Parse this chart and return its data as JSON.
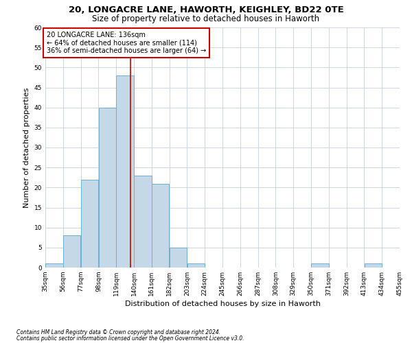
{
  "title_line1": "20, LONGACRE LANE, HAWORTH, KEIGHLEY, BD22 0TE",
  "title_line2": "Size of property relative to detached houses in Haworth",
  "xlabel": "Distribution of detached houses by size in Haworth",
  "ylabel": "Number of detached properties",
  "footnote1": "Contains HM Land Registry data © Crown copyright and database right 2024.",
  "footnote2": "Contains public sector information licensed under the Open Government Licence v3.0.",
  "annotation_title": "20 LONGACRE LANE: 136sqm",
  "annotation_line2": "← 64% of detached houses are smaller (114)",
  "annotation_line3": "36% of semi-detached houses are larger (64) →",
  "property_size": 136,
  "bar_edges": [
    35,
    56,
    77,
    98,
    119,
    140,
    161,
    182,
    203,
    224,
    245,
    266,
    287,
    308,
    329,
    350,
    371,
    392,
    413,
    434,
    455
  ],
  "bar_values": [
    1,
    8,
    22,
    40,
    48,
    23,
    21,
    5,
    1,
    0,
    0,
    0,
    0,
    0,
    0,
    1,
    0,
    0,
    1,
    0,
    0
  ],
  "bar_color": "#c5d8e8",
  "bar_edge_color": "#6aafd4",
  "vline_color": "#cc0000",
  "vline_x": 136,
  "annotation_box_color": "#cc0000",
  "annotation_box_fill": "#ffffff",
  "ylim": [
    0,
    60
  ],
  "yticks": [
    0,
    5,
    10,
    15,
    20,
    25,
    30,
    35,
    40,
    45,
    50,
    55,
    60
  ],
  "background_color": "#ffffff",
  "grid_color": "#c8d8e8",
  "title_fontsize": 9.5,
  "subtitle_fontsize": 8.5,
  "tick_label_fontsize": 6.5,
  "axis_label_fontsize": 8,
  "annotation_fontsize": 7,
  "footnote_fontsize": 5.5
}
